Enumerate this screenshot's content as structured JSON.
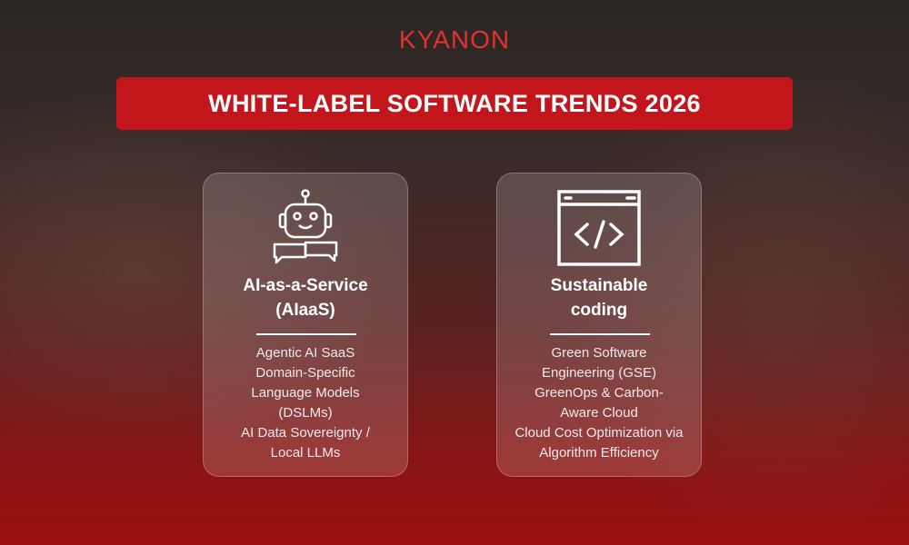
{
  "brand": {
    "logo_text": "KYANON",
    "accent": "#e0332f"
  },
  "banner": {
    "title": "WHITE-LABEL SOFTWARE TRENDS 2026",
    "color": "#c3161c"
  },
  "cards": [
    {
      "icon": "robot-chat-icon",
      "title_line1": "AI-as-a-Service",
      "title_line2": "(AIaaS)",
      "items": [
        "Agentic AI SaaS",
        "Domain-Specific Language Models (DSLMs)",
        "AI Data Sovereignty / Local LLMs"
      ]
    },
    {
      "icon": "code-window-icon",
      "title_line1": "Sustainable",
      "title_line2": "coding",
      "items": [
        "Green Software Engineering (GSE)",
        "GreenOps & Carbon-Aware Cloud",
        "Cloud Cost Optimization via Algorithm Efficiency"
      ]
    }
  ]
}
